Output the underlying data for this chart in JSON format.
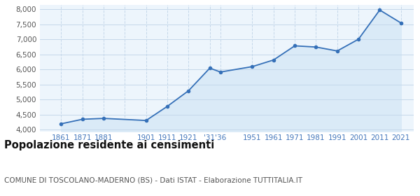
{
  "years": [
    1861,
    1871,
    1881,
    1901,
    1911,
    1921,
    1931,
    1936,
    1951,
    1961,
    1971,
    1981,
    1991,
    2001,
    2011,
    2021
  ],
  "population": [
    4200,
    4350,
    4380,
    4310,
    4780,
    5300,
    6050,
    5920,
    6100,
    6320,
    6790,
    6750,
    6620,
    7010,
    7980,
    7550
  ],
  "line_color": "#3570b8",
  "fill_color": "#daeaf7",
  "marker_color": "#3570b8",
  "grid_color_h": "#c5d8ea",
  "grid_color_v": "#c5d8ea",
  "bg_color": "#edf5fc",
  "title": "Popolazione residente ai censimenti",
  "subtitle": "COMUNE DI TOSCOLANO-MADERNO (BS) - Dati ISTAT - Elaborazione TUTTITALIA.IT",
  "ylim": [
    3950,
    8150
  ],
  "yticks": [
    4000,
    4500,
    5000,
    5500,
    6000,
    6500,
    7000,
    7500,
    8000
  ],
  "title_fontsize": 10.5,
  "subtitle_fontsize": 7.5,
  "tick_fontsize": 7.5,
  "axis_label_color": "#4477bb",
  "x_tick_positions": [
    1861,
    1871,
    1881,
    1891,
    1901,
    1911,
    1921,
    1933.5,
    1944,
    1951,
    1961,
    1971,
    1981,
    1991,
    2001,
    2011,
    2021
  ],
  "x_tick_labels": [
    "1861",
    "1871",
    "1881",
    "",
    "1901",
    "1911",
    "1921",
    "'31'36",
    "",
    "1951",
    "1961",
    "1971",
    "1981",
    "1991",
    "2001",
    "2011",
    "2021"
  ],
  "x_grid_positions": [
    1861,
    1871,
    1881,
    1891,
    1901,
    1911,
    1921,
    1931,
    1936,
    1951,
    1961,
    1971,
    1981,
    1991,
    2001,
    2011,
    2021
  ],
  "xlim": [
    1851,
    2027
  ]
}
